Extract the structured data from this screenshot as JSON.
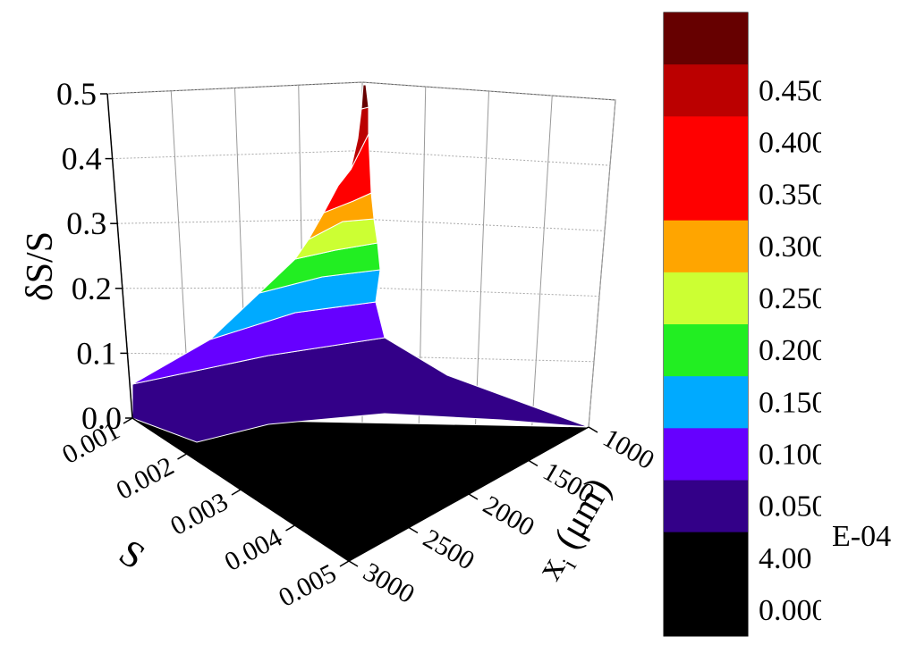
{
  "chart_data": {
    "type": "surface3d",
    "zlabel": "δS/S",
    "ylabel": "S",
    "xlabel_main": "x",
    "xlabel_sub": "i",
    "xlabel_unit": "(μm)",
    "z_ticks": [
      "0.0",
      "0.1",
      "0.2",
      "0.3",
      "0.4",
      "0.5"
    ],
    "s_ticks": [
      "0.001",
      "0.002",
      "0.003",
      "0.004",
      "0.005"
    ],
    "x_ticks": [
      "1000",
      "1500",
      "2000",
      "2500",
      "3000"
    ],
    "zlim": [
      0,
      0.5
    ],
    "slim": [
      0.001,
      0.005
    ],
    "xlim": [
      1000,
      3000
    ],
    "surface_samples": [
      {
        "x": 1000,
        "s": 0.001,
        "z": 0.5
      },
      {
        "x": 1000,
        "s": 0.005,
        "z": 0.0
      },
      {
        "x": 3000,
        "s": 0.001,
        "z": 0.06
      },
      {
        "x": 3000,
        "s": 0.005,
        "z": 0.0004
      }
    ],
    "legend": {
      "levels": [
        {
          "label": "",
          "color": "#660000"
        },
        {
          "label": "0.450",
          "color": "#bb0000"
        },
        {
          "label": "0.400",
          "color": "#ff0000"
        },
        {
          "label": "0.350",
          "color": "#ff0000"
        },
        {
          "label": "0.300",
          "color": "#ffa500"
        },
        {
          "label": "0.250",
          "color": "#ccff33"
        },
        {
          "label": "0.200",
          "color": "#22ee22"
        },
        {
          "label": "0.150",
          "color": "#00aaff"
        },
        {
          "label": "0.100",
          "color": "#6600ff"
        },
        {
          "label": "0.050",
          "color": "#330088"
        },
        {
          "label": "4.00",
          "color": "#000000"
        },
        {
          "label": "0.000",
          "color": "#000000"
        }
      ],
      "exponent_note": "E-04"
    }
  }
}
